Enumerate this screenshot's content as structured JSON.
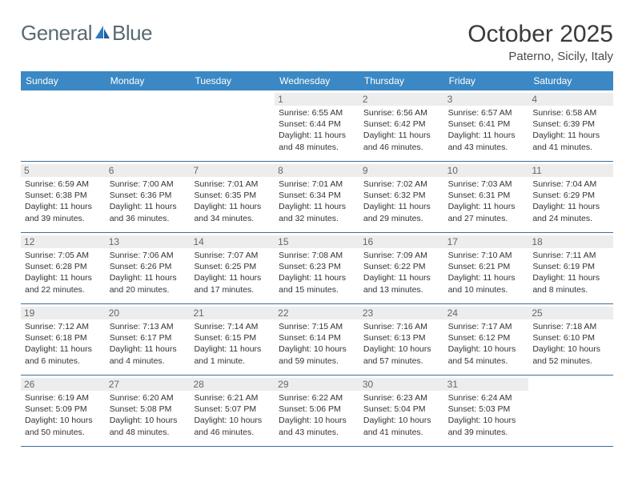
{
  "logo": {
    "text1": "General",
    "text2": "Blue"
  },
  "header": {
    "month_title": "October 2025",
    "location": "Paterno, Sicily, Italy"
  },
  "colors": {
    "header_bar": "#3b88c4",
    "row_border": "#3b6f9c",
    "daynum_bg": "#ededed",
    "logo_text": "#5a6a73",
    "logo_blue": "#2a7bbf"
  },
  "days_of_week": [
    "Sunday",
    "Monday",
    "Tuesday",
    "Wednesday",
    "Thursday",
    "Friday",
    "Saturday"
  ],
  "weeks": [
    [
      {
        "n": "",
        "lines": []
      },
      {
        "n": "",
        "lines": []
      },
      {
        "n": "",
        "lines": []
      },
      {
        "n": "1",
        "lines": [
          "Sunrise: 6:55 AM",
          "Sunset: 6:44 PM",
          "Daylight: 11 hours and 48 minutes."
        ]
      },
      {
        "n": "2",
        "lines": [
          "Sunrise: 6:56 AM",
          "Sunset: 6:42 PM",
          "Daylight: 11 hours and 46 minutes."
        ]
      },
      {
        "n": "3",
        "lines": [
          "Sunrise: 6:57 AM",
          "Sunset: 6:41 PM",
          "Daylight: 11 hours and 43 minutes."
        ]
      },
      {
        "n": "4",
        "lines": [
          "Sunrise: 6:58 AM",
          "Sunset: 6:39 PM",
          "Daylight: 11 hours and 41 minutes."
        ]
      }
    ],
    [
      {
        "n": "5",
        "lines": [
          "Sunrise: 6:59 AM",
          "Sunset: 6:38 PM",
          "Daylight: 11 hours and 39 minutes."
        ]
      },
      {
        "n": "6",
        "lines": [
          "Sunrise: 7:00 AM",
          "Sunset: 6:36 PM",
          "Daylight: 11 hours and 36 minutes."
        ]
      },
      {
        "n": "7",
        "lines": [
          "Sunrise: 7:01 AM",
          "Sunset: 6:35 PM",
          "Daylight: 11 hours and 34 minutes."
        ]
      },
      {
        "n": "8",
        "lines": [
          "Sunrise: 7:01 AM",
          "Sunset: 6:34 PM",
          "Daylight: 11 hours and 32 minutes."
        ]
      },
      {
        "n": "9",
        "lines": [
          "Sunrise: 7:02 AM",
          "Sunset: 6:32 PM",
          "Daylight: 11 hours and 29 minutes."
        ]
      },
      {
        "n": "10",
        "lines": [
          "Sunrise: 7:03 AM",
          "Sunset: 6:31 PM",
          "Daylight: 11 hours and 27 minutes."
        ]
      },
      {
        "n": "11",
        "lines": [
          "Sunrise: 7:04 AM",
          "Sunset: 6:29 PM",
          "Daylight: 11 hours and 24 minutes."
        ]
      }
    ],
    [
      {
        "n": "12",
        "lines": [
          "Sunrise: 7:05 AM",
          "Sunset: 6:28 PM",
          "Daylight: 11 hours and 22 minutes."
        ]
      },
      {
        "n": "13",
        "lines": [
          "Sunrise: 7:06 AM",
          "Sunset: 6:26 PM",
          "Daylight: 11 hours and 20 minutes."
        ]
      },
      {
        "n": "14",
        "lines": [
          "Sunrise: 7:07 AM",
          "Sunset: 6:25 PM",
          "Daylight: 11 hours and 17 minutes."
        ]
      },
      {
        "n": "15",
        "lines": [
          "Sunrise: 7:08 AM",
          "Sunset: 6:23 PM",
          "Daylight: 11 hours and 15 minutes."
        ]
      },
      {
        "n": "16",
        "lines": [
          "Sunrise: 7:09 AM",
          "Sunset: 6:22 PM",
          "Daylight: 11 hours and 13 minutes."
        ]
      },
      {
        "n": "17",
        "lines": [
          "Sunrise: 7:10 AM",
          "Sunset: 6:21 PM",
          "Daylight: 11 hours and 10 minutes."
        ]
      },
      {
        "n": "18",
        "lines": [
          "Sunrise: 7:11 AM",
          "Sunset: 6:19 PM",
          "Daylight: 11 hours and 8 minutes."
        ]
      }
    ],
    [
      {
        "n": "19",
        "lines": [
          "Sunrise: 7:12 AM",
          "Sunset: 6:18 PM",
          "Daylight: 11 hours and 6 minutes."
        ]
      },
      {
        "n": "20",
        "lines": [
          "Sunrise: 7:13 AM",
          "Sunset: 6:17 PM",
          "Daylight: 11 hours and 4 minutes."
        ]
      },
      {
        "n": "21",
        "lines": [
          "Sunrise: 7:14 AM",
          "Sunset: 6:15 PM",
          "Daylight: 11 hours and 1 minute."
        ]
      },
      {
        "n": "22",
        "lines": [
          "Sunrise: 7:15 AM",
          "Sunset: 6:14 PM",
          "Daylight: 10 hours and 59 minutes."
        ]
      },
      {
        "n": "23",
        "lines": [
          "Sunrise: 7:16 AM",
          "Sunset: 6:13 PM",
          "Daylight: 10 hours and 57 minutes."
        ]
      },
      {
        "n": "24",
        "lines": [
          "Sunrise: 7:17 AM",
          "Sunset: 6:12 PM",
          "Daylight: 10 hours and 54 minutes."
        ]
      },
      {
        "n": "25",
        "lines": [
          "Sunrise: 7:18 AM",
          "Sunset: 6:10 PM",
          "Daylight: 10 hours and 52 minutes."
        ]
      }
    ],
    [
      {
        "n": "26",
        "lines": [
          "Sunrise: 6:19 AM",
          "Sunset: 5:09 PM",
          "Daylight: 10 hours and 50 minutes."
        ]
      },
      {
        "n": "27",
        "lines": [
          "Sunrise: 6:20 AM",
          "Sunset: 5:08 PM",
          "Daylight: 10 hours and 48 minutes."
        ]
      },
      {
        "n": "28",
        "lines": [
          "Sunrise: 6:21 AM",
          "Sunset: 5:07 PM",
          "Daylight: 10 hours and 46 minutes."
        ]
      },
      {
        "n": "29",
        "lines": [
          "Sunrise: 6:22 AM",
          "Sunset: 5:06 PM",
          "Daylight: 10 hours and 43 minutes."
        ]
      },
      {
        "n": "30",
        "lines": [
          "Sunrise: 6:23 AM",
          "Sunset: 5:04 PM",
          "Daylight: 10 hours and 41 minutes."
        ]
      },
      {
        "n": "31",
        "lines": [
          "Sunrise: 6:24 AM",
          "Sunset: 5:03 PM",
          "Daylight: 10 hours and 39 minutes."
        ]
      },
      {
        "n": "",
        "lines": []
      }
    ]
  ]
}
